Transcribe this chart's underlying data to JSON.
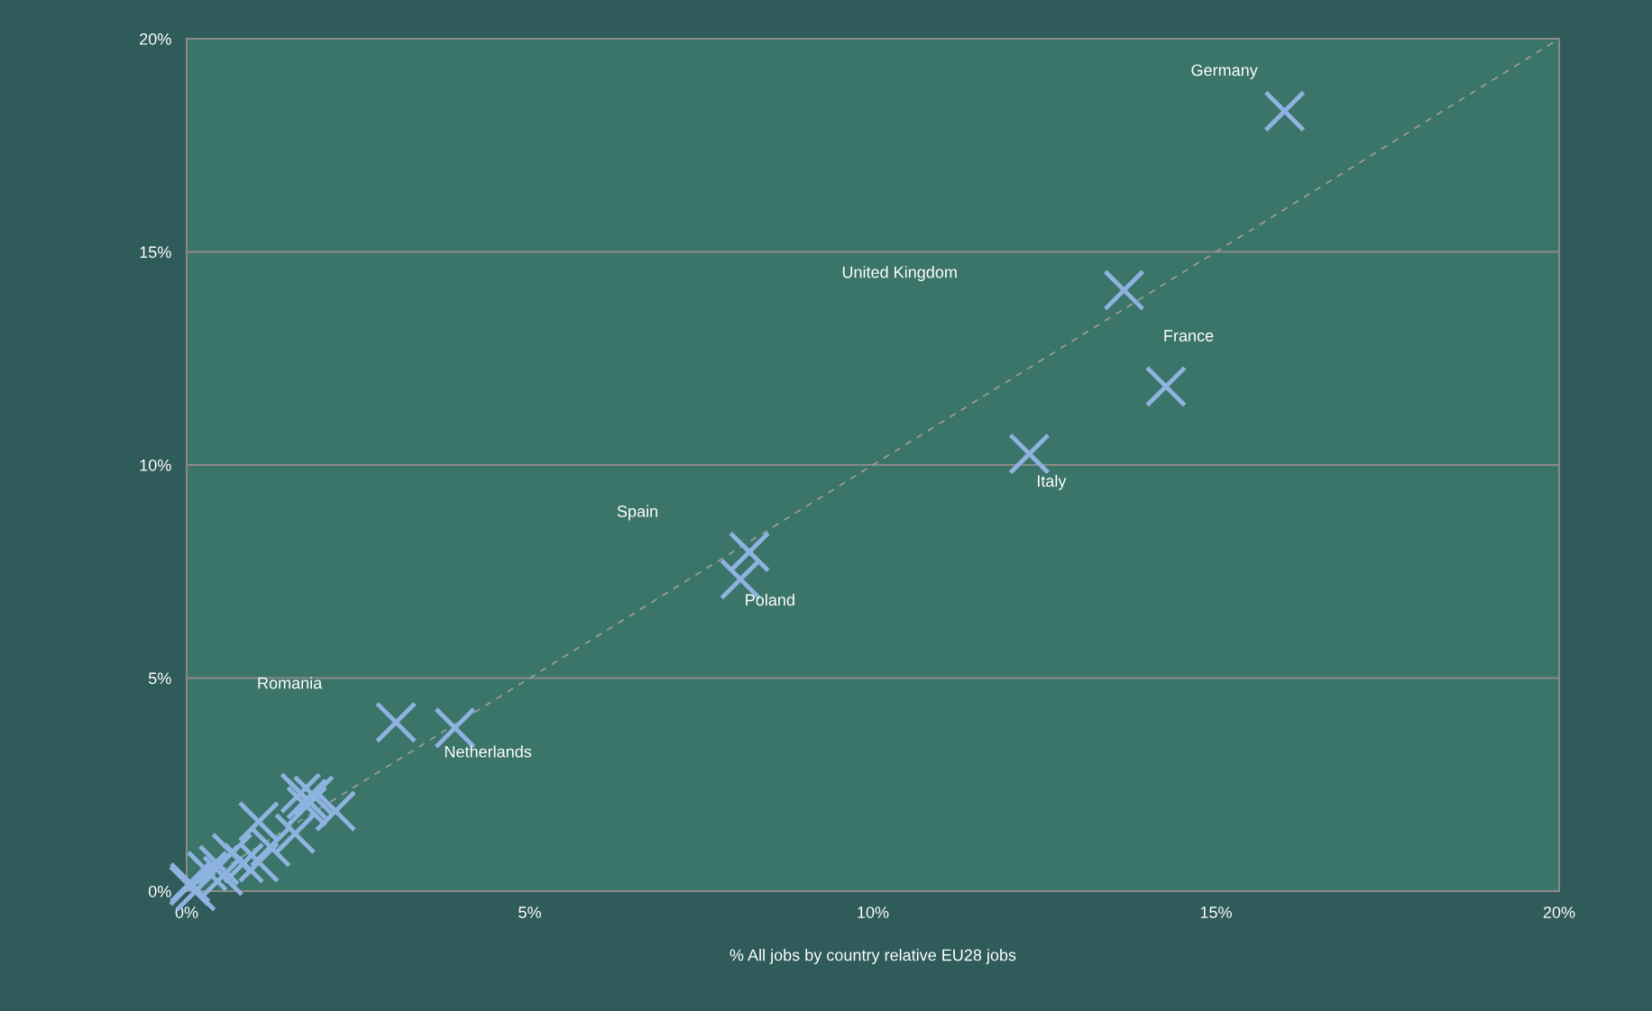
{
  "chart_data": {
    "type": "scatter",
    "xlabel": "% All jobs by country relative EU28 jobs",
    "xlim": [
      0,
      20
    ],
    "ylim": [
      0,
      20
    ],
    "xticks": [
      {
        "value": 0,
        "label": "0%"
      },
      {
        "value": 5,
        "label": "5%"
      },
      {
        "value": 10,
        "label": "10%"
      },
      {
        "value": 15,
        "label": "15%"
      },
      {
        "value": 20,
        "label": "20%"
      }
    ],
    "yticks": [
      {
        "value": 0,
        "label": "0%"
      },
      {
        "value": 5,
        "label": "5%"
      },
      {
        "value": 10,
        "label": "10%"
      },
      {
        "value": 15,
        "label": "15%"
      },
      {
        "value": 20,
        "label": "20%"
      }
    ],
    "grid": "y",
    "series": [
      {
        "marker": "cross",
        "color": "#8fb3e0",
        "x": [
          16.0,
          13.66,
          14.27,
          12.28,
          8.2,
          8.07,
          3.05,
          3.91,
          1.66,
          1.85,
          1.75,
          1.75,
          2.17,
          1.05,
          1.58,
          1.22,
          0.66,
          0.83,
          1.05,
          0.3,
          0.53,
          0.04,
          0.13,
          0.47,
          0.05
        ],
        "values": [
          18.3,
          14.1,
          11.84,
          10.26,
          7.96,
          7.32,
          3.96,
          3.83,
          2.3,
          2.24,
          1.99,
          2.16,
          1.88,
          1.63,
          1.35,
          1.04,
          0.89,
          0.66,
          0.68,
          0.47,
          0.36,
          0.13,
          0.0,
          0.61,
          0.2
        ]
      },
      {
        "type": "line",
        "color": "#9a9a9a",
        "line_style": "dashed",
        "x": [
          0,
          20
        ],
        "values": [
          0,
          20
        ]
      }
    ],
    "annotations": [
      {
        "text": "Germany",
        "x": 16.0,
        "y": 18.3
      },
      "United Kingdom",
      {
        "text": "France",
        "x": 14.27,
        "y": 11.84
      },
      {
        "text": "Italy",
        "x": 12.28,
        "y": 10.26
      },
      "Spain",
      {
        "text": "Poland",
        "x": 8.07,
        "y": 7.32
      },
      "Romania",
      {
        "text": "Netherlands",
        "x": 3.91,
        "y": 3.83
      }
    ]
  }
}
